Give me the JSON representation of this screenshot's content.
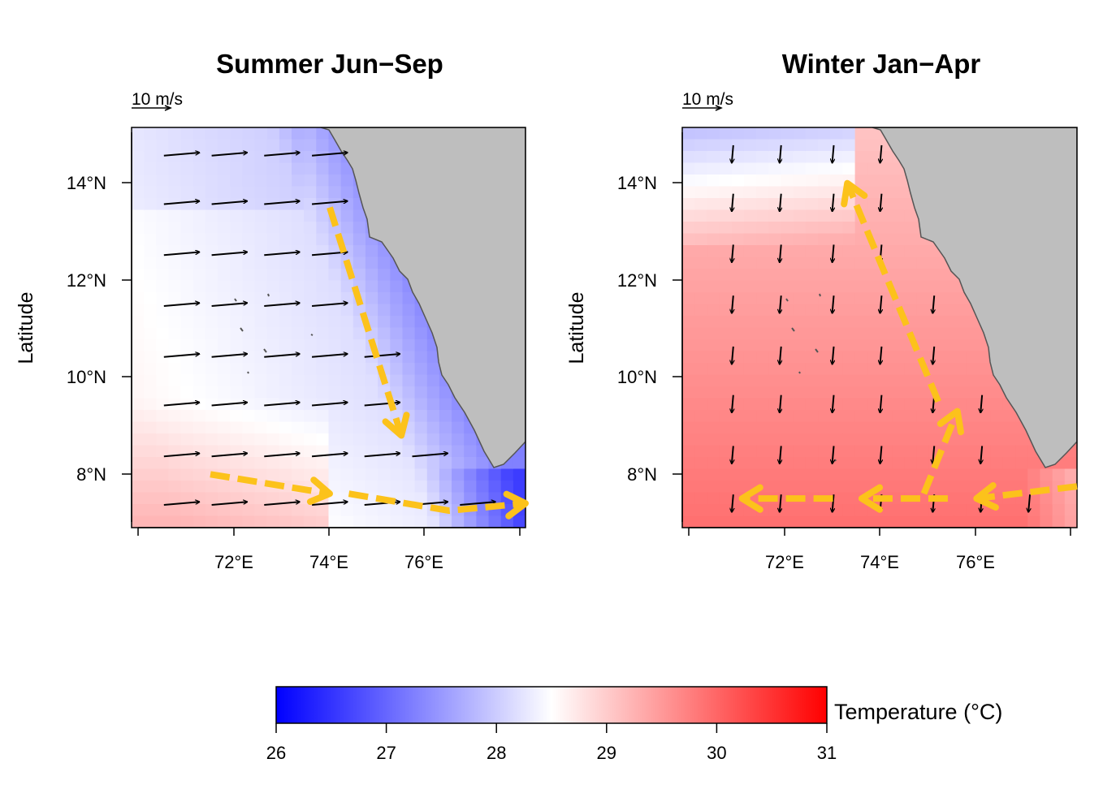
{
  "panels": [
    {
      "id": "summer",
      "title": "Summer Jun−Sep",
      "ylabel": "Latitude",
      "scale_label": "10 m/s",
      "x_ticks": [
        "72°E",
        "74°E",
        "76°E"
      ],
      "y_ticks": [
        "14°N",
        "12°N",
        "10°N",
        "8°N"
      ],
      "lon_range": [
        69.85,
        78.1
      ],
      "lat_range": [
        6.9,
        15.15
      ],
      "wind_direction_deg": 85,
      "current_paths": [
        [
          [
            74.0,
            13.5
          ],
          [
            75.5,
            8.8
          ]
        ],
        [
          [
            71.5,
            8.0
          ],
          [
            74.0,
            7.6
          ]
        ],
        [
          [
            74.4,
            7.6
          ],
          [
            76.5,
            7.25
          ],
          [
            78.1,
            7.4
          ]
        ]
      ],
      "temperature_field": "cool (about 27–28 °C) along the coast, near 28.5 °C offshore in the south"
    },
    {
      "id": "winter",
      "title": "Winter Jan−Apr",
      "ylabel": "Latitude",
      "scale_label": "10 m/s",
      "x_ticks": [
        "72°E",
        "74°E",
        "76°E"
      ],
      "y_ticks": [
        "14°N",
        "12°N",
        "10°N",
        "8°N"
      ],
      "lon_range": [
        69.85,
        78.1
      ],
      "lat_range": [
        6.9,
        15.15
      ],
      "wind_direction_deg": 185,
      "current_paths": [
        [
          [
            78.1,
            7.75
          ],
          [
            76.0,
            7.5
          ]
        ],
        [
          [
            75.4,
            7.5
          ],
          [
            73.6,
            7.5
          ]
        ],
        [
          [
            73.0,
            7.5
          ],
          [
            71.1,
            7.5
          ]
        ],
        [
          [
            74.9,
            7.6
          ],
          [
            75.6,
            9.3
          ]
        ],
        [
          [
            75.2,
            9.5
          ],
          [
            73.3,
            14.0
          ]
        ]
      ],
      "temperature_field": "warm (about 29–30 °C) across the domain, cooler near 28 °C in the north-west"
    }
  ],
  "colorbar": {
    "title": "Temperature (°C)",
    "ticks": [
      "26",
      "27",
      "28",
      "29",
      "30",
      "31"
    ],
    "range": [
      26,
      31
    ],
    "colors": {
      "low": "#0000ff",
      "mid": "#ffffff",
      "high": "#ff0000"
    }
  },
  "colors": {
    "land": "#bebebe",
    "coast": "#555555",
    "current_arrow": "#fcc21b",
    "wind_arrow": "#000000"
  }
}
